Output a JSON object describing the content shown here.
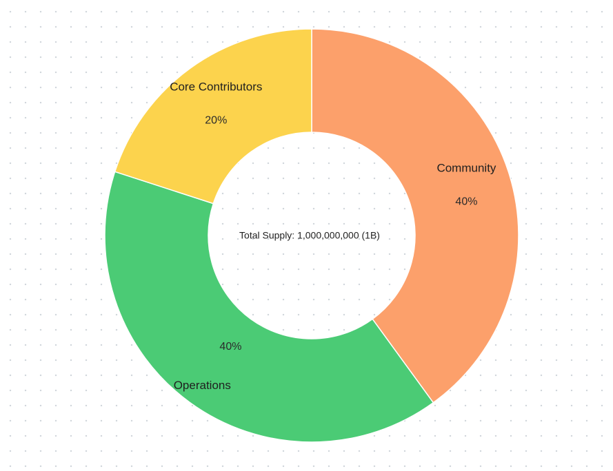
{
  "chart_data": {
    "type": "pie",
    "variant": "donut",
    "center_label": "Total Supply: 1,000,000,000 (1B)",
    "slices": [
      {
        "label": "Community",
        "value": 40,
        "display": "40%",
        "color": "#FCA06B"
      },
      {
        "label": "Operations",
        "value": 40,
        "display": "40%",
        "color": "#4BCB75"
      },
      {
        "label": "Core Contributors",
        "value": 20,
        "display": "20%",
        "color": "#FCD34D"
      }
    ],
    "grid": "dotted-background",
    "legend": "none"
  }
}
